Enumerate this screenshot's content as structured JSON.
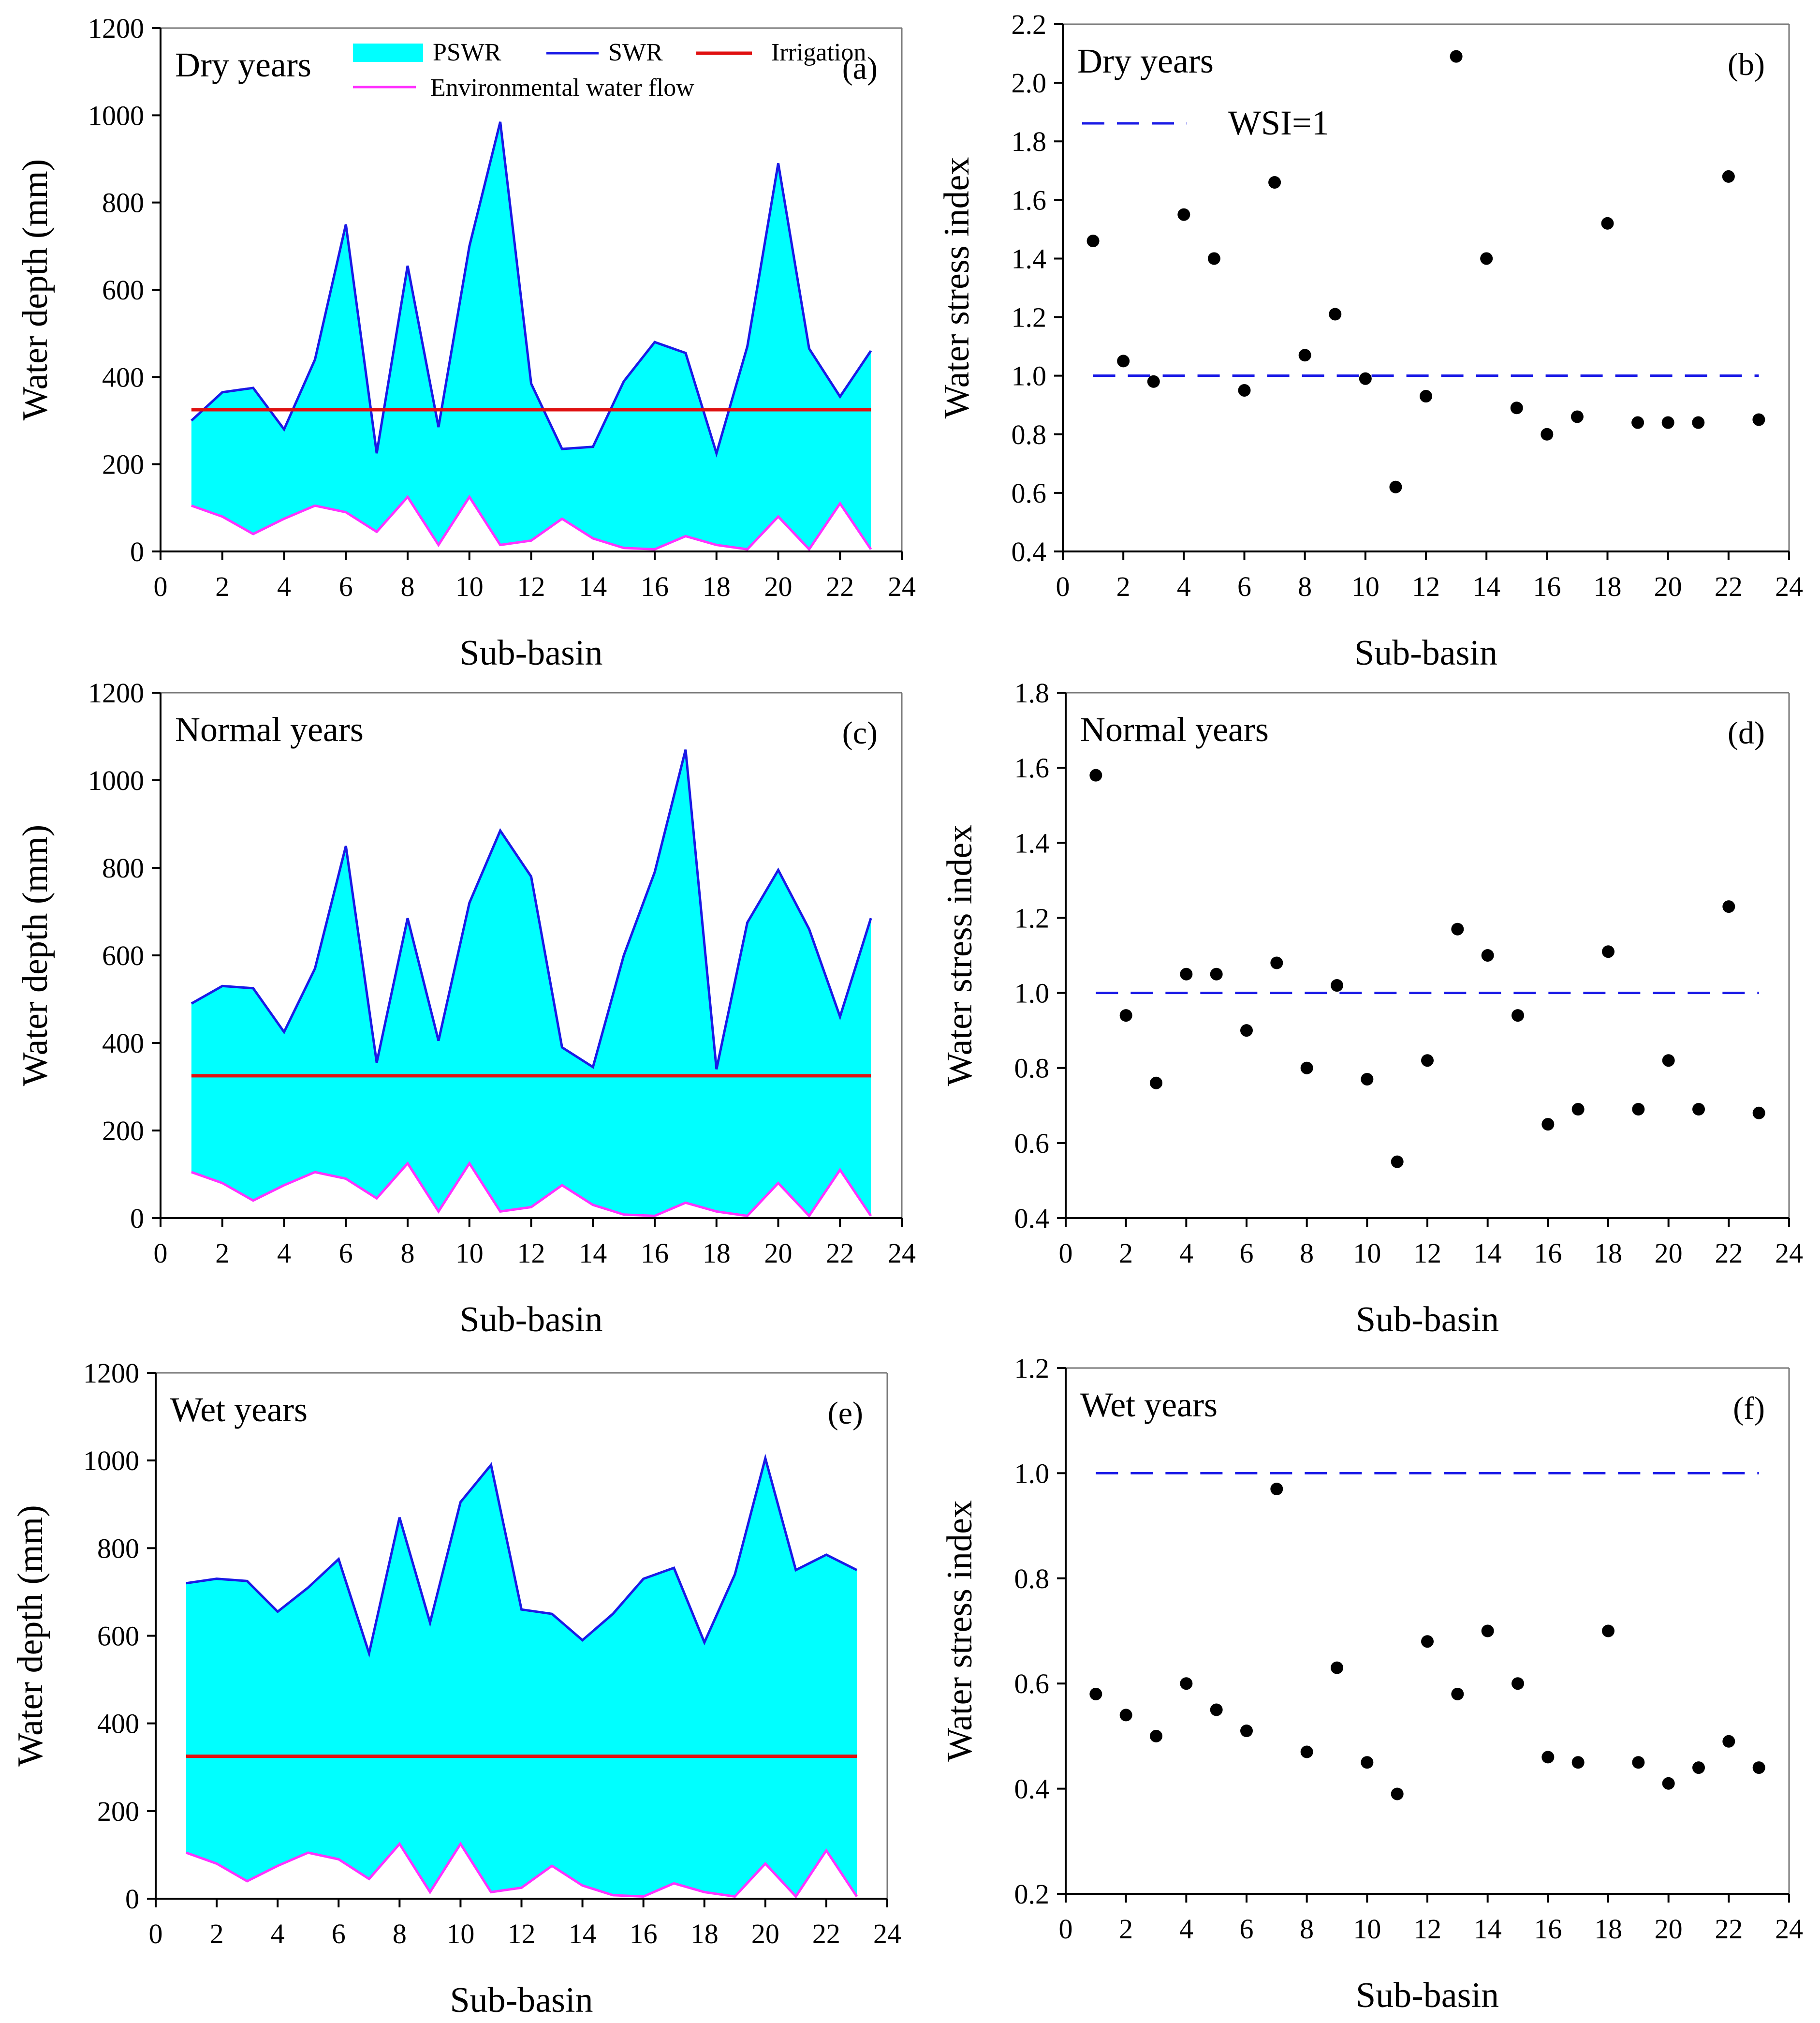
{
  "figure": {
    "xlabel": "Sub-basin",
    "ylabel_depth": "Water depth (mm)",
    "ylabel_wsi": "Water stress index",
    "legend": {
      "pswr": "PSWR",
      "swr": "SWR",
      "irrigation": "Irrigation",
      "env": "Environmental water flow",
      "wsi": "WSI=1"
    }
  },
  "colors": {
    "pswr_fill": "#00FFFF",
    "swr_line": "#1A1AE6",
    "irrigation_line": "#E01010",
    "env_line": "#FF33FF",
    "wsi_line": "#1A1AE6",
    "points": "#000000"
  },
  "chart_data": [
    {
      "id": "a",
      "type": "area",
      "title": "Dry years",
      "tag": "(a)",
      "xlabel": "Sub-basin",
      "ylabel": "Water depth (mm)",
      "xlim": [
        0,
        24
      ],
      "ylim": [
        0,
        1200
      ],
      "xticks": [
        0,
        2,
        4,
        6,
        8,
        10,
        12,
        14,
        16,
        18,
        20,
        22,
        24
      ],
      "yticks": [
        0,
        200,
        400,
        600,
        800,
        1000,
        1200
      ],
      "x": [
        1,
        2,
        3,
        4,
        5,
        6,
        7,
        8,
        9,
        10,
        11,
        12,
        13,
        14,
        15,
        16,
        17,
        18,
        19,
        20,
        21,
        22,
        23
      ],
      "series": [
        {
          "name": "SWR",
          "values": [
            300,
            365,
            375,
            280,
            440,
            750,
            225,
            655,
            285,
            700,
            985,
            385,
            235,
            240,
            390,
            480,
            455,
            225,
            470,
            890,
            465,
            355,
            460
          ]
        },
        {
          "name": "Environmental water flow",
          "values": [
            105,
            80,
            40,
            75,
            105,
            90,
            45,
            125,
            15,
            125,
            15,
            25,
            75,
            30,
            8,
            5,
            35,
            15,
            5,
            80,
            5,
            110,
            5
          ]
        },
        {
          "name": "Irrigation",
          "values": [
            325,
            325,
            325,
            325,
            325,
            325,
            325,
            325,
            325,
            325,
            325,
            325,
            325,
            325,
            325,
            325,
            325,
            325,
            325,
            325,
            325,
            325,
            325
          ]
        }
      ],
      "legend": [
        "PSWR",
        "SWR",
        "Irrigation",
        "Environmental water flow"
      ]
    },
    {
      "id": "b",
      "type": "scatter",
      "title": "Dry years",
      "tag": "(b)",
      "xlabel": "Sub-basin",
      "ylabel": "Water stress index",
      "xlim": [
        0,
        24
      ],
      "ylim": [
        0.4,
        2.2
      ],
      "xticks": [
        0,
        2,
        4,
        6,
        8,
        10,
        12,
        14,
        16,
        18,
        20,
        22,
        24
      ],
      "yticks": [
        "0.4",
        "0.6",
        "0.8",
        "1.0",
        "1.2",
        "1.4",
        "1.6",
        "1.8",
        "2.0",
        "2.2"
      ],
      "x": [
        1,
        2,
        3,
        4,
        5,
        6,
        7,
        8,
        9,
        10,
        11,
        12,
        13,
        14,
        15,
        16,
        17,
        18,
        19,
        20,
        21,
        22,
        23
      ],
      "values": [
        1.46,
        1.05,
        0.98,
        1.55,
        1.4,
        0.95,
        1.66,
        1.07,
        1.21,
        0.99,
        0.62,
        0.93,
        2.09,
        1.4,
        0.89,
        0.8,
        0.86,
        1.52,
        0.84,
        0.84,
        0.84,
        1.68,
        0.85
      ],
      "reference": 1.0,
      "legend": [
        "WSI=1"
      ]
    },
    {
      "id": "c",
      "type": "area",
      "title": "Normal years",
      "tag": "(c)",
      "xlabel": "Sub-basin",
      "ylabel": "Water depth (mm)",
      "xlim": [
        0,
        24
      ],
      "ylim": [
        0,
        1200
      ],
      "xticks": [
        0,
        2,
        4,
        6,
        8,
        10,
        12,
        14,
        16,
        18,
        20,
        22,
        24
      ],
      "yticks": [
        0,
        200,
        400,
        600,
        800,
        1000,
        1200
      ],
      "x": [
        1,
        2,
        3,
        4,
        5,
        6,
        7,
        8,
        9,
        10,
        11,
        12,
        13,
        14,
        15,
        16,
        17,
        18,
        19,
        20,
        21,
        22,
        23
      ],
      "series": [
        {
          "name": "SWR",
          "values": [
            490,
            530,
            525,
            425,
            570,
            850,
            355,
            685,
            405,
            720,
            885,
            780,
            390,
            345,
            600,
            790,
            1070,
            340,
            675,
            795,
            660,
            460,
            685
          ]
        },
        {
          "name": "Environmental water flow",
          "values": [
            105,
            80,
            40,
            75,
            105,
            90,
            45,
            125,
            15,
            125,
            15,
            25,
            75,
            30,
            8,
            5,
            35,
            15,
            5,
            80,
            5,
            110,
            5
          ]
        },
        {
          "name": "Irrigation",
          "values": [
            325,
            325,
            325,
            325,
            325,
            325,
            325,
            325,
            325,
            325,
            325,
            325,
            325,
            325,
            325,
            325,
            325,
            325,
            325,
            325,
            325,
            325,
            325
          ]
        }
      ]
    },
    {
      "id": "d",
      "type": "scatter",
      "title": "Normal years",
      "tag": "(d)",
      "xlabel": "Sub-basin",
      "ylabel": "Water stress index",
      "xlim": [
        0,
        24
      ],
      "ylim": [
        0.4,
        1.8
      ],
      "xticks": [
        0,
        2,
        4,
        6,
        8,
        10,
        12,
        14,
        16,
        18,
        20,
        22,
        24
      ],
      "yticks": [
        "0.4",
        "0.6",
        "0.8",
        "1.0",
        "1.2",
        "1.4",
        "1.6",
        "1.8"
      ],
      "x": [
        1,
        2,
        3,
        4,
        5,
        6,
        7,
        8,
        9,
        10,
        11,
        12,
        13,
        14,
        15,
        16,
        17,
        18,
        19,
        20,
        21,
        22,
        23
      ],
      "values": [
        1.58,
        0.94,
        0.76,
        1.05,
        1.05,
        0.9,
        1.08,
        0.8,
        1.02,
        0.77,
        0.55,
        0.82,
        1.17,
        1.1,
        0.94,
        0.65,
        0.69,
        1.11,
        0.69,
        0.82,
        0.69,
        1.23,
        0.68
      ],
      "reference": 1.0
    },
    {
      "id": "e",
      "type": "area",
      "title": "Wet years",
      "tag": "(e)",
      "xlabel": "Sub-basin",
      "ylabel": "Water depth (mm)",
      "xlim": [
        0,
        24
      ],
      "ylim": [
        0,
        1200
      ],
      "xticks": [
        0,
        2,
        4,
        6,
        8,
        10,
        12,
        14,
        16,
        18,
        20,
        22,
        24
      ],
      "yticks": [
        0,
        200,
        400,
        600,
        800,
        1000,
        1200
      ],
      "x": [
        1,
        2,
        3,
        4,
        5,
        6,
        7,
        8,
        9,
        10,
        11,
        12,
        13,
        14,
        15,
        16,
        17,
        18,
        19,
        20,
        21,
        22,
        23
      ],
      "series": [
        {
          "name": "SWR",
          "values": [
            720,
            730,
            725,
            655,
            710,
            775,
            560,
            870,
            630,
            905,
            990,
            660,
            650,
            590,
            650,
            730,
            755,
            585,
            740,
            1005,
            750,
            785,
            750
          ]
        },
        {
          "name": "Environmental water flow",
          "values": [
            105,
            80,
            40,
            75,
            105,
            90,
            45,
            125,
            15,
            125,
            15,
            25,
            75,
            30,
            8,
            5,
            35,
            15,
            5,
            80,
            5,
            110,
            5
          ]
        },
        {
          "name": "Irrigation",
          "values": [
            325,
            325,
            325,
            325,
            325,
            325,
            325,
            325,
            325,
            325,
            325,
            325,
            325,
            325,
            325,
            325,
            325,
            325,
            325,
            325,
            325,
            325,
            325
          ]
        }
      ]
    },
    {
      "id": "f",
      "type": "scatter",
      "title": "Wet years",
      "tag": "(f)",
      "xlabel": "Sub-basin",
      "ylabel": "Water stress index",
      "xlim": [
        0,
        24
      ],
      "ylim": [
        0.2,
        1.2
      ],
      "xticks": [
        0,
        2,
        4,
        6,
        8,
        10,
        12,
        14,
        16,
        18,
        20,
        22,
        24
      ],
      "yticks": [
        "0.2",
        "0.4",
        "0.6",
        "0.8",
        "1.0",
        "1.2"
      ],
      "x": [
        1,
        2,
        3,
        4,
        5,
        6,
        7,
        8,
        9,
        10,
        11,
        12,
        13,
        14,
        15,
        16,
        17,
        18,
        19,
        20,
        21,
        22,
        23
      ],
      "values": [
        0.58,
        0.54,
        0.5,
        0.6,
        0.55,
        0.51,
        0.97,
        0.47,
        0.63,
        0.45,
        0.39,
        0.68,
        0.58,
        0.7,
        0.6,
        0.46,
        0.45,
        0.7,
        0.45,
        0.41,
        0.44,
        0.49,
        0.44
      ],
      "reference": 1.0
    }
  ]
}
